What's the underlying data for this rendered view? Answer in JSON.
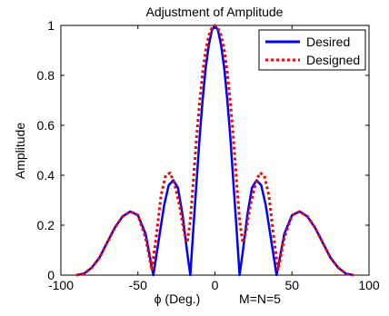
{
  "chart_data": {
    "type": "line",
    "title": "Adjustment of Amplitude",
    "xlabel": "ϕ (Deg.)",
    "ylabel": "Amplitude",
    "annotation": "M=N=5",
    "xlim": [
      -100,
      100
    ],
    "ylim": [
      0,
      1
    ],
    "x_ticks": [
      -100,
      -50,
      0,
      50,
      100
    ],
    "x_tick_labels": [
      "-100",
      "-50",
      "0",
      "50",
      "100"
    ],
    "y_ticks": [
      0,
      0.2,
      0.4,
      0.6,
      0.8,
      1
    ],
    "y_tick_labels": [
      "0",
      "0.2",
      "0.4",
      "0.6",
      "0.8",
      "1"
    ],
    "grid": false,
    "legend_position": "top-right",
    "series": [
      {
        "name": "Desired",
        "color": "#0000ff",
        "style": "solid",
        "x": [
          -90,
          -85,
          -80,
          -75,
          -70,
          -65,
          -60,
          -55,
          -50,
          -45,
          -40,
          -37,
          -33,
          -30,
          -27,
          -24,
          -21,
          -18,
          -16,
          -14,
          -12,
          -10,
          -8,
          -6,
          -4,
          -2,
          0,
          2,
          4,
          6,
          8,
          10,
          12,
          14,
          16,
          18,
          21,
          24,
          27,
          30,
          33,
          37,
          40,
          45,
          50,
          55,
          60,
          65,
          70,
          75,
          80,
          85,
          90
        ],
        "y": [
          0,
          0.006,
          0.03,
          0.07,
          0.13,
          0.19,
          0.235,
          0.255,
          0.24,
          0.165,
          0.0,
          0.12,
          0.28,
          0.36,
          0.38,
          0.35,
          0.24,
          0.09,
          0.0,
          0.19,
          0.37,
          0.55,
          0.7,
          0.83,
          0.92,
          0.98,
          1.0,
          0.98,
          0.92,
          0.83,
          0.7,
          0.55,
          0.37,
          0.19,
          0.0,
          0.09,
          0.24,
          0.35,
          0.38,
          0.36,
          0.28,
          0.12,
          0.0,
          0.165,
          0.24,
          0.255,
          0.235,
          0.19,
          0.13,
          0.07,
          0.03,
          0.006,
          0
        ]
      },
      {
        "name": "Designed",
        "color": "#ff0000",
        "style": "dotted",
        "x": [
          -90,
          -85,
          -80,
          -75,
          -70,
          -65,
          -60,
          -55,
          -50,
          -45,
          -41,
          -38,
          -35,
          -32,
          -29,
          -26,
          -23,
          -20,
          -18,
          -16,
          -14,
          -12,
          -10,
          -8,
          -6,
          -4,
          -2,
          0,
          2,
          4,
          6,
          8,
          10,
          12,
          14,
          16,
          18,
          20,
          23,
          26,
          29,
          32,
          35,
          38,
          41,
          45,
          50,
          55,
          60,
          65,
          70,
          75,
          80,
          85,
          90
        ],
        "y": [
          0,
          0.006,
          0.03,
          0.07,
          0.13,
          0.19,
          0.235,
          0.255,
          0.24,
          0.15,
          0.02,
          0.16,
          0.32,
          0.4,
          0.41,
          0.36,
          0.28,
          0.17,
          0.13,
          0.22,
          0.38,
          0.55,
          0.69,
          0.81,
          0.9,
          0.96,
          0.99,
          1.0,
          0.99,
          0.96,
          0.9,
          0.81,
          0.69,
          0.55,
          0.38,
          0.22,
          0.13,
          0.17,
          0.28,
          0.36,
          0.41,
          0.4,
          0.32,
          0.16,
          0.02,
          0.15,
          0.24,
          0.255,
          0.235,
          0.19,
          0.13,
          0.07,
          0.03,
          0.006,
          0
        ]
      }
    ]
  }
}
